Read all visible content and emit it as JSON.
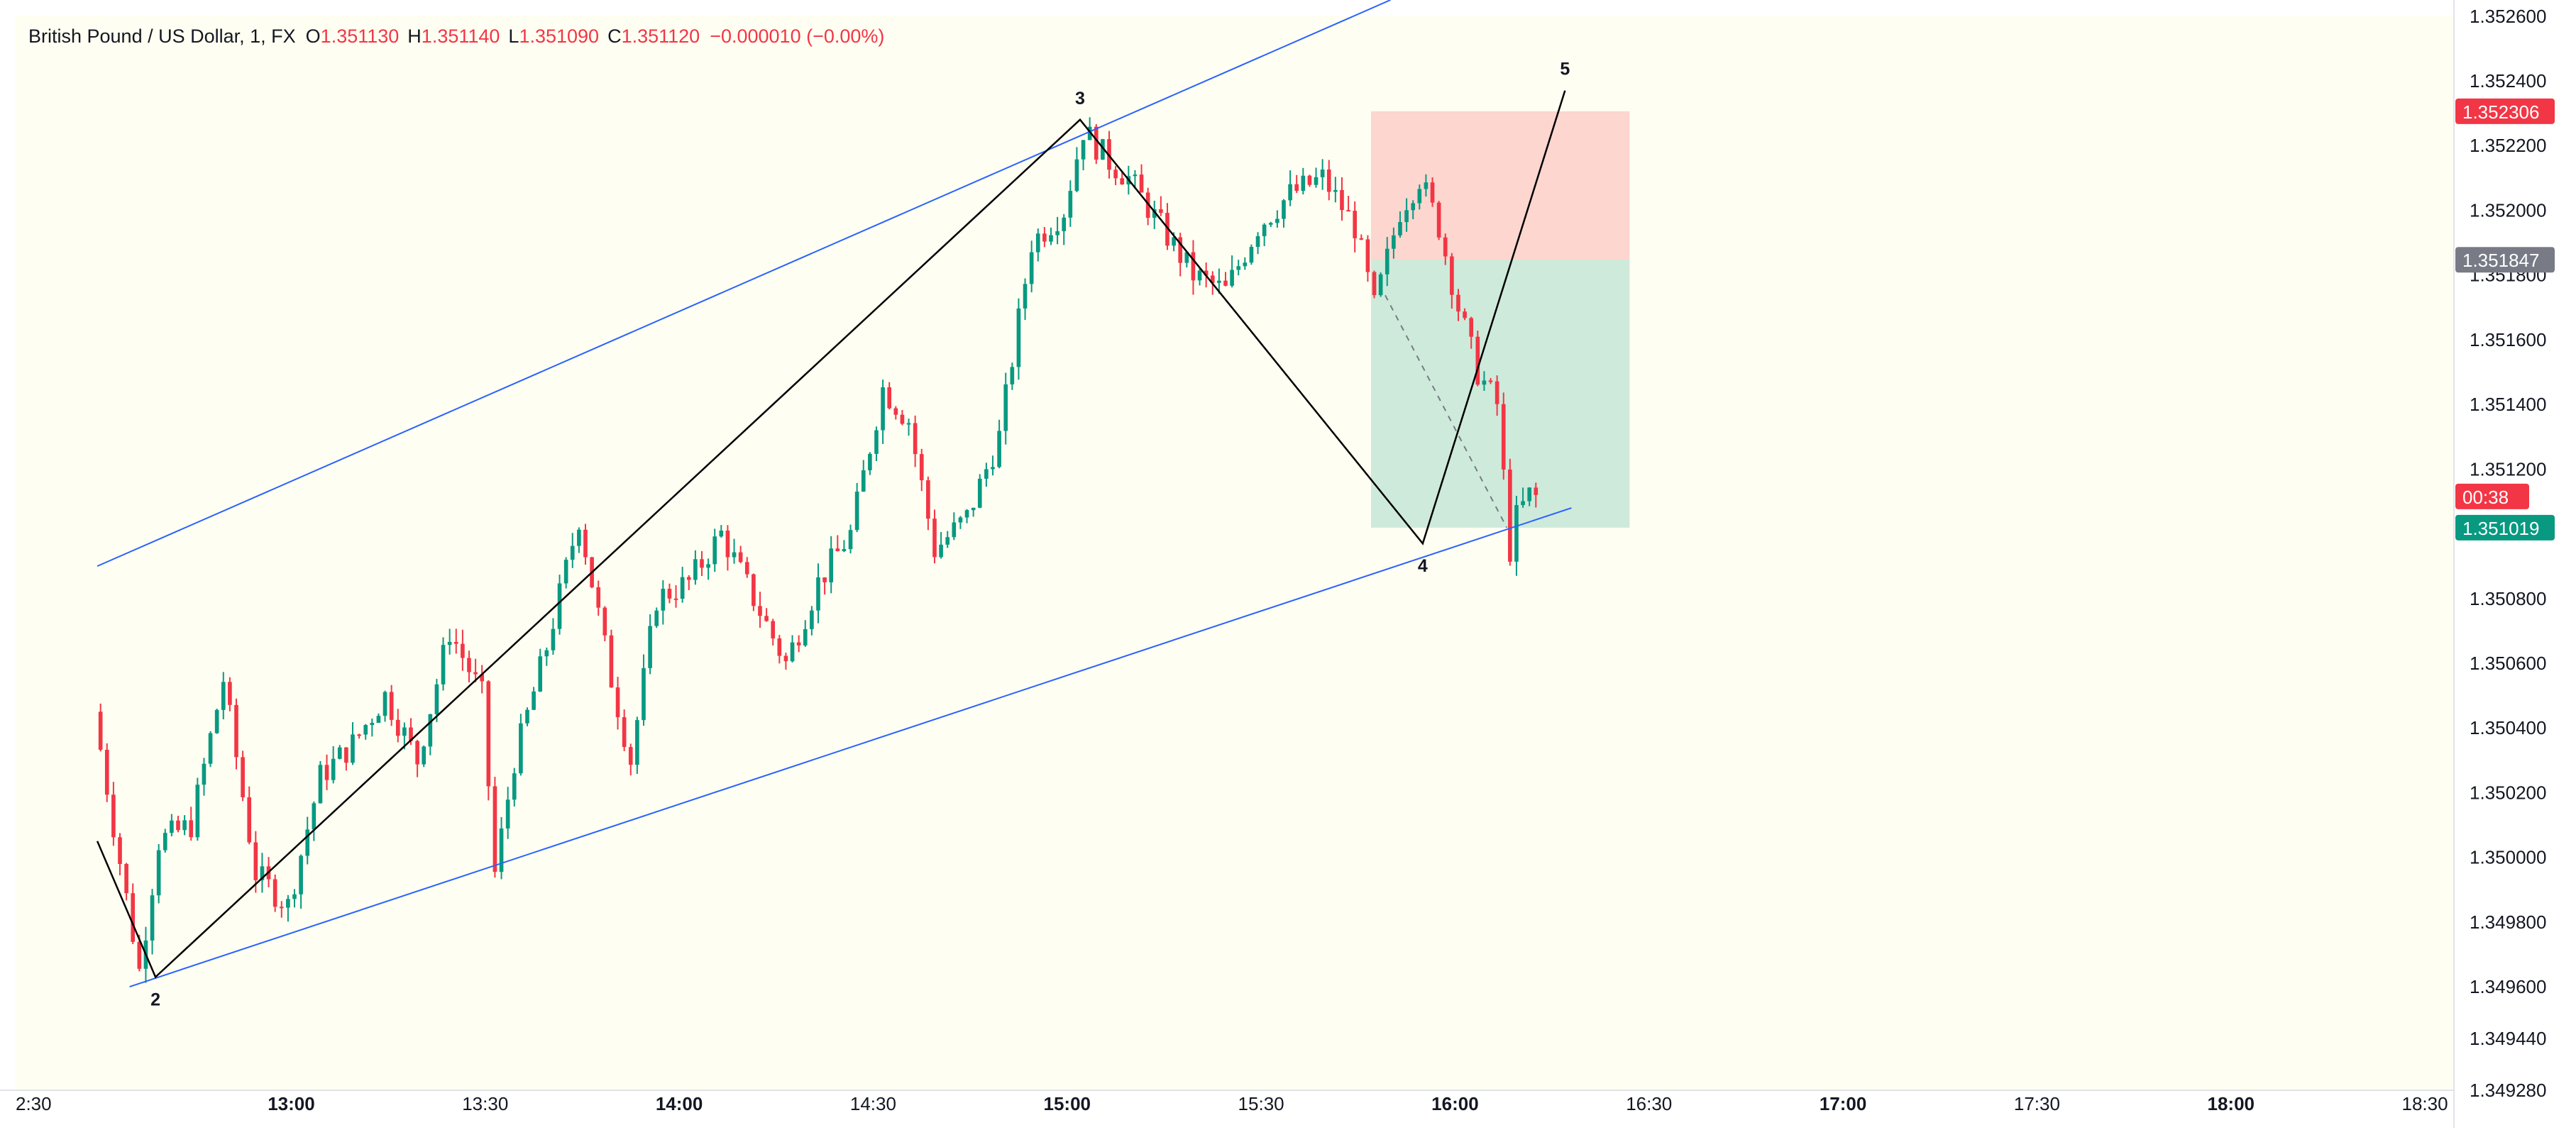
{
  "header": {
    "symbol": "British Pound / US Dollar, 1, FX",
    "o_label": "O",
    "o_value": "1.351130",
    "h_label": "H",
    "h_value": "1.351140",
    "l_label": "L",
    "l_value": "1.351090",
    "c_label": "C",
    "c_value": "1.351120",
    "change": "−0.000010 (−0.00%)"
  },
  "colors": {
    "background": "#FFFEF2",
    "up": "#089981",
    "down": "#F23645",
    "channel": "#2962FF",
    "wave": "#000000",
    "stop_zone": "#F23645",
    "target_zone": "#089981",
    "entry_badge": "#787B86"
  },
  "price_badges": {
    "stop": "1.352306",
    "entry": "1.351847",
    "countdown": "00:38",
    "target": "1.351019"
  },
  "chart_data": {
    "type": "candlestick",
    "interval": "1 minute",
    "x_axis": {
      "visible_range": [
        "12:30",
        "18:40"
      ],
      "tick_labels": [
        "2:30",
        "13:00",
        "13:30",
        "14:00",
        "14:30",
        "15:00",
        "15:30",
        "16:00",
        "16:30",
        "17:00",
        "17:30",
        "18:00",
        "18:30"
      ],
      "bold_tick_labels": [
        "13:00",
        "14:00",
        "15:00",
        "16:00",
        "17:00",
        "18:00"
      ]
    },
    "y_axis": {
      "range": [
        1.34928,
        1.35265
      ],
      "tick_labels": [
        "1.352600",
        "1.352400",
        "1.352200",
        "1.352000",
        "1.351800",
        "1.351600",
        "1.351400",
        "1.351200",
        "1.350800",
        "1.350600",
        "1.350400",
        "1.350200",
        "1.350000",
        "1.349800",
        "1.349600",
        "1.349440",
        "1.349280"
      ]
    },
    "price_path": [
      [
        "12:30",
        1.35045
      ],
      [
        "12:33",
        1.3501
      ],
      [
        "12:37",
        1.34965
      ],
      [
        "12:40",
        1.35005
      ],
      [
        "12:45",
        1.3501
      ],
      [
        "12:50",
        1.35055
      ],
      [
        "12:55",
        1.34995
      ],
      [
        "13:00",
        1.34985
      ],
      [
        "13:05",
        1.35025
      ],
      [
        "13:10",
        1.35035
      ],
      [
        "13:15",
        1.3505
      ],
      [
        "13:20",
        1.3503
      ],
      [
        "13:25",
        1.3507
      ],
      [
        "13:30",
        1.3505
      ],
      [
        "13:32",
        1.34995
      ],
      [
        "13:35",
        1.3503
      ],
      [
        "13:40",
        1.35065
      ],
      [
        "13:45",
        1.35105
      ],
      [
        "13:50",
        1.35055
      ],
      [
        "13:53",
        1.3503
      ],
      [
        "13:57",
        1.3508
      ],
      [
        "14:02",
        1.35085
      ],
      [
        "14:07",
        1.351
      ],
      [
        "14:12",
        1.3508
      ],
      [
        "14:17",
        1.3506
      ],
      [
        "14:22",
        1.35085
      ],
      [
        "14:27",
        1.351
      ],
      [
        "14:32",
        1.35145
      ],
      [
        "14:36",
        1.35135
      ],
      [
        "14:40",
        1.35095
      ],
      [
        "14:45",
        1.35105
      ],
      [
        "14:50",
        1.3513
      ],
      [
        "14:55",
        1.3519
      ],
      [
        "15:00",
        1.352
      ],
      [
        "15:03",
        1.35225
      ],
      [
        "15:07",
        1.35215
      ],
      [
        "15:10",
        1.3521
      ],
      [
        "15:15",
        1.35195
      ],
      [
        "15:20",
        1.3518
      ],
      [
        "15:25",
        1.35175
      ],
      [
        "15:30",
        1.35195
      ],
      [
        "15:35",
        1.35205
      ],
      [
        "15:40",
        1.3521
      ],
      [
        "15:45",
        1.35195
      ],
      [
        "15:48",
        1.3517
      ],
      [
        "15:52",
        1.352
      ],
      [
        "15:55",
        1.3521
      ],
      [
        "15:58",
        1.35195
      ],
      [
        "16:01",
        1.3517
      ],
      [
        "16:04",
        1.3515
      ],
      [
        "16:07",
        1.3514
      ],
      [
        "16:09",
        1.35095
      ],
      [
        "16:10",
        1.35105
      ],
      [
        "16:12",
        1.35112
      ]
    ],
    "channel_lines": [
      {
        "from": [
          "12:30",
          1.3509
        ],
        "to": [
          "15:50",
          1.35265
        ]
      },
      {
        "from": [
          "12:35",
          1.3496
        ],
        "to": [
          "16:18",
          1.35108
        ]
      }
    ],
    "wave_points": [
      {
        "label": "",
        "time": "12:30",
        "price": 1.35005
      },
      {
        "label": "2",
        "time": "12:39",
        "price": 1.34963
      },
      {
        "label": "3",
        "time": "15:02",
        "price": 1.35228
      },
      {
        "label": "4",
        "time": "15:55",
        "price": 1.35097
      },
      {
        "label": "5",
        "time": "16:17",
        "price": 1.35237
      }
    ],
    "short_position": {
      "start": "15:47",
      "end": "16:27",
      "stop": 1.352306,
      "entry": 1.351847,
      "target": 1.351019
    },
    "last_price": 1.35112
  }
}
